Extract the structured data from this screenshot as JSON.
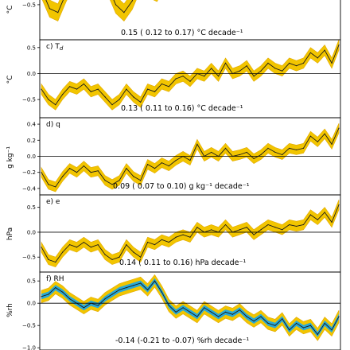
{
  "chart_data": [
    {
      "type": "line",
      "panel_label": "",
      "ylabel": "°C",
      "yticks": [
        "0.0",
        "−0.5"
      ],
      "ylim": [
        -0.95,
        0.05
      ],
      "annotation": "0.15 ( 0.12 to  0.17) °C decade⁻¹",
      "colors": {
        "band": "#f2c500",
        "band_edge": "#e0a800",
        "line": "#1a1a1a"
      },
      "series": [
        {
          "values": [
            -0.3,
            -0.55,
            -0.6,
            -0.35,
            -0.15,
            -0.25,
            -0.3,
            -0.1,
            -0.25,
            -0.5,
            -0.6,
            -0.45,
            -0.2,
            -0.3,
            -0.35,
            -0.15,
            -0.2,
            -0.3,
            -0.1,
            -0.05,
            0.05,
            -0.05,
            -0.02,
            0.0,
            0.02,
            0.0,
            0.01,
            0.03,
            0.04,
            0.02,
            0.05,
            0.03,
            0.04,
            0.05,
            0.04,
            0.03,
            0.05
          ]
        }
      ],
      "uncertainty": 0.11
    },
    {
      "type": "line",
      "panel_label": "c) T",
      "panel_label_sub": "d",
      "ylabel": "°C",
      "yticks": [
        "0.5",
        "0.0",
        "−0.5"
      ],
      "ylim": [
        -0.85,
        0.65
      ],
      "annotation": "0.13 ( 0.11 to  0.16) °C decade⁻¹",
      "colors": {
        "band": "#f2c500",
        "band_edge": "#e0a800",
        "line": "#1a1a1a"
      },
      "series": [
        {
          "values": [
            -0.3,
            -0.5,
            -0.6,
            -0.4,
            -0.25,
            -0.3,
            -0.2,
            -0.35,
            -0.3,
            -0.45,
            -0.6,
            -0.5,
            -0.3,
            -0.45,
            -0.55,
            -0.3,
            -0.35,
            -0.2,
            -0.25,
            -0.1,
            -0.05,
            -0.15,
            0.0,
            -0.05,
            0.1,
            -0.05,
            0.2,
            0.0,
            0.05,
            0.15,
            -0.05,
            0.05,
            0.2,
            0.1,
            0.05,
            0.2,
            0.15,
            0.2,
            0.4,
            0.3,
            0.45,
            0.2,
            0.55
          ]
        }
      ],
      "uncertainty": 0.1
    },
    {
      "type": "line",
      "panel_label": "d) q",
      "ylabel": "g kg⁻¹",
      "yticks": [
        "0.4",
        "0.2",
        "0.0",
        "−0.2",
        "−0.4"
      ],
      "ylim": [
        -0.48,
        0.48
      ],
      "annotation": "0.09 ( 0.07 to  0.10) g kg⁻¹ decade⁻¹",
      "colors": {
        "band": "#f2c500",
        "band_edge": "#e0a800",
        "line": "#1a1a1a"
      },
      "series": [
        {
          "values": [
            -0.2,
            -0.35,
            -0.38,
            -0.25,
            -0.15,
            -0.2,
            -0.12,
            -0.2,
            -0.18,
            -0.3,
            -0.35,
            -0.3,
            -0.15,
            -0.25,
            -0.3,
            -0.1,
            -0.15,
            -0.08,
            -0.12,
            -0.05,
            0.0,
            -0.05,
            0.15,
            0.0,
            0.05,
            0.0,
            0.1,
            0.0,
            0.02,
            0.05,
            -0.03,
            0.02,
            0.1,
            0.05,
            0.02,
            0.1,
            0.08,
            0.1,
            0.25,
            0.18,
            0.28,
            0.15,
            0.35
          ]
        }
      ],
      "uncertainty": 0.06
    },
    {
      "type": "line",
      "panel_label": "e) e",
      "ylabel": "hPa",
      "yticks": [
        "0.5",
        "0.0",
        "−0.5"
      ],
      "ylim": [
        -0.8,
        0.75
      ],
      "annotation": "0.14 ( 0.11 to  0.16) hPa decade⁻¹",
      "colors": {
        "band": "#f2c500",
        "band_edge": "#e0a800",
        "line": "#1a1a1a"
      },
      "series": [
        {
          "values": [
            -0.3,
            -0.55,
            -0.6,
            -0.4,
            -0.25,
            -0.3,
            -0.2,
            -0.3,
            -0.25,
            -0.45,
            -0.55,
            -0.5,
            -0.25,
            -0.4,
            -0.5,
            -0.2,
            -0.25,
            -0.15,
            -0.2,
            -0.1,
            -0.05,
            -0.1,
            0.1,
            0.0,
            0.05,
            0.0,
            0.15,
            0.0,
            0.05,
            0.1,
            -0.05,
            0.05,
            0.15,
            0.1,
            0.05,
            0.15,
            0.12,
            0.15,
            0.35,
            0.25,
            0.4,
            0.2,
            0.55
          ]
        }
      ],
      "uncertainty": 0.1
    },
    {
      "type": "line",
      "panel_label": "f) RH",
      "ylabel": "%rh",
      "yticks": [
        "0.5",
        "0.0",
        "−0.5",
        "−1.0"
      ],
      "ylim": [
        -1.05,
        0.7
      ],
      "annotation": "-0.14 (-0.21 to -0.07) %rh decade⁻¹",
      "colors": {
        "band": "#f2c500",
        "band_edge": "#e0a800",
        "band_inner": "#29a9d6",
        "line": "#1a1a1a"
      },
      "series": [
        {
          "values": [
            0.15,
            0.2,
            0.35,
            0.25,
            0.1,
            0.0,
            -0.1,
            0.0,
            -0.05,
            0.1,
            0.2,
            0.3,
            0.35,
            0.4,
            0.45,
            0.3,
            0.5,
            0.25,
            -0.05,
            -0.2,
            -0.1,
            -0.2,
            -0.3,
            -0.1,
            -0.2,
            -0.3,
            -0.2,
            -0.25,
            -0.15,
            -0.3,
            -0.4,
            -0.3,
            -0.45,
            -0.5,
            -0.35,
            -0.6,
            -0.45,
            -0.55,
            -0.5,
            -0.7,
            -0.45,
            -0.6,
            -0.3
          ]
        }
      ],
      "uncertainty": 0.14,
      "uncertainty_inner": 0.06
    }
  ]
}
